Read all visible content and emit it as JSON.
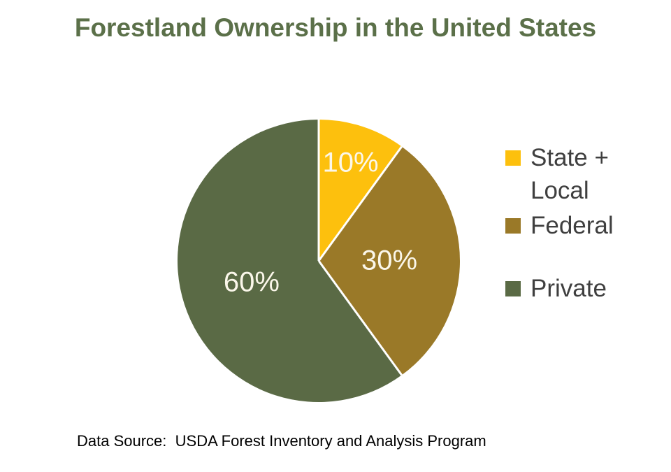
{
  "title": "Forestland Ownership in the United States",
  "source_note": "Data Source:  USDA Forest Inventory and Analysis Program",
  "colors": {
    "background": "#FFFFFF",
    "title_text": "#5B7049",
    "legend_text": "#3F3F3F",
    "pie_label_text": "#FBF7EA",
    "slice_separator": "#FFFFFF"
  },
  "chart_data": {
    "type": "pie",
    "title": "Forestland Ownership in the United States",
    "start_angle_deg": 0,
    "direction": "clockwise",
    "legend_position": "right",
    "grid": false,
    "slices": [
      {
        "label": "State + Local",
        "legend_label": "State +\nLocal",
        "value": 10,
        "display": "10%",
        "color": "#FDC00D"
      },
      {
        "label": "Federal",
        "legend_label": "Federal",
        "value": 30,
        "display": "30%",
        "color": "#9A7928"
      },
      {
        "label": "Private",
        "legend_label": "Private",
        "value": 60,
        "display": "60%",
        "color": "#5A6A45"
      }
    ],
    "source_note": "Data Source:  USDA Forest Inventory and Analysis Program"
  }
}
